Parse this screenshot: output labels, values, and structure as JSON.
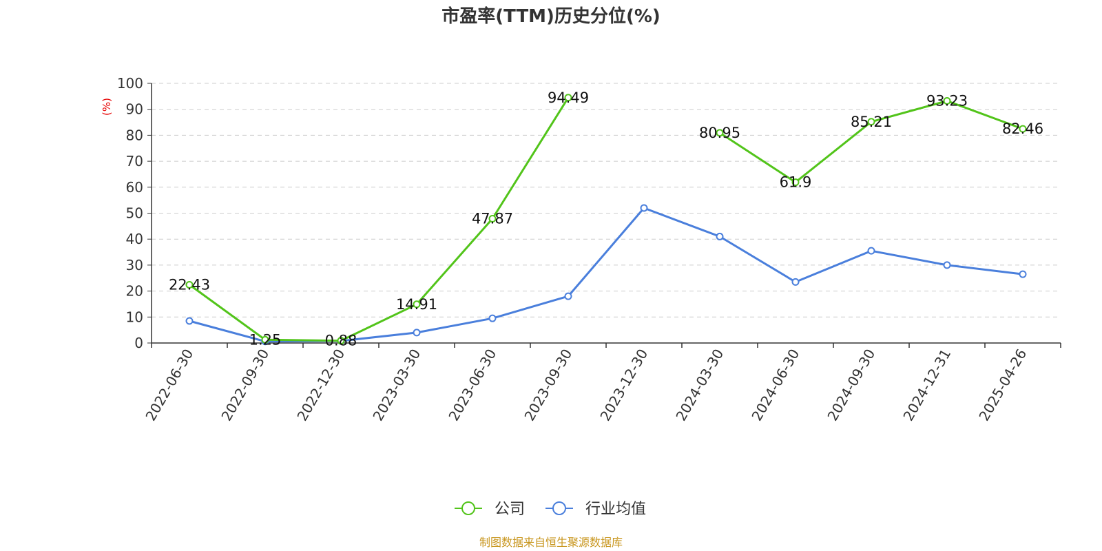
{
  "chart_data": {
    "type": "line",
    "title": "市盈率(TTM)历史分位(%)",
    "ylabel": "(%)",
    "xlabel": "",
    "ylim": [
      0,
      100
    ],
    "yticks": [
      0,
      10,
      20,
      30,
      40,
      50,
      60,
      70,
      80,
      90,
      100
    ],
    "grid": true,
    "legend_position": "bottom",
    "categories": [
      "2022-06-30",
      "2022-09-30",
      "2022-12-30",
      "2023-03-30",
      "2023-06-30",
      "2023-09-30",
      "2023-12-30",
      "2024-03-30",
      "2024-06-30",
      "2024-09-30",
      "2024-12-31",
      "2025-04-26"
    ],
    "series": [
      {
        "name": "公司",
        "color": "#52c41a",
        "values": [
          22.43,
          1.25,
          0.88,
          14.91,
          47.87,
          94.49,
          null,
          80.95,
          61.9,
          85.21,
          93.23,
          82.46
        ],
        "value_labels": [
          "22.43",
          "1.25",
          "0.88",
          "14.91",
          "47.87",
          "94.49",
          "",
          "80.95",
          "61.9",
          "85.21",
          "93.23",
          "82.46"
        ]
      },
      {
        "name": "行业均值",
        "color": "#4a7fdc",
        "values": [
          8.5,
          0.6,
          0.8,
          4.0,
          9.5,
          18.0,
          52.0,
          41.0,
          23.5,
          35.5,
          30.0,
          26.5
        ]
      }
    ]
  },
  "legend": {
    "items": [
      {
        "label": "公司",
        "color": "#52c41a"
      },
      {
        "label": "行业均值",
        "color": "#4a7fdc"
      }
    ]
  },
  "source_note": "制图数据来自恒生聚源数据库"
}
